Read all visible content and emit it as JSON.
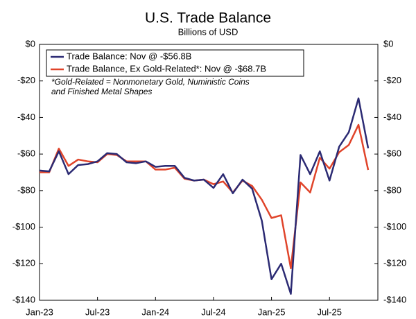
{
  "chart_data": {
    "type": "line",
    "title": "U.S. Trade Balance",
    "subtitle": "Billions of USD",
    "annotation": [
      "*Gold-Related = Nonmonetary Gold, Nuministic Coins",
      "and Finished Metal Shapes"
    ],
    "categories": [
      "Jan-23",
      null,
      null,
      null,
      null,
      null,
      "Jul-23",
      null,
      null,
      null,
      null,
      null,
      "Jan-24",
      null,
      null,
      null,
      null,
      null,
      "Jul-24",
      null,
      null,
      null,
      null,
      null,
      "Jan-25",
      null,
      null,
      null,
      null,
      null,
      "Jul-25",
      null,
      null,
      null,
      null
    ],
    "series": [
      {
        "name": "Trade Balance: Nov @ -$56.8B",
        "color": "#2b2a73",
        "values": [
          -69,
          -69.5,
          -58.5,
          -71,
          -66,
          -65.5,
          -64,
          -59.5,
          -60,
          -64.5,
          -65,
          -64,
          -67,
          -66.5,
          -66.5,
          -73,
          -74.5,
          -74,
          -78.5,
          -71,
          -81.5,
          -74,
          -79,
          -96.5,
          -128.5,
          -120,
          -136.5,
          -60.5,
          -71,
          -58.5,
          -74.5,
          -56,
          -48,
          -29.5,
          -56.8
        ]
      },
      {
        "name": "Trade Balance, Ex Gold-Related*: Nov @ -$68.7B",
        "color": "#e0442a",
        "values": [
          -70,
          -70,
          -57,
          -66.5,
          -63,
          -64,
          -64.5,
          -60,
          -60.5,
          -64,
          -64,
          -64,
          -68.5,
          -68.5,
          -67.5,
          -73.5,
          -74.5,
          -74,
          -76.5,
          -75,
          -81,
          -74.5,
          -77.5,
          -85,
          -95,
          -93.5,
          -122.5,
          -75.5,
          -81,
          -62,
          -68,
          -59,
          -55,
          -44,
          -68.7
        ]
      }
    ],
    "ylim": [
      -140,
      0
    ],
    "yticks": [
      {
        "value": 0,
        "label": "$0"
      },
      {
        "value": -20,
        "label": "-$20"
      },
      {
        "value": -40,
        "label": "-$40"
      },
      {
        "value": -60,
        "label": "-$60"
      },
      {
        "value": -80,
        "label": "-$80"
      },
      {
        "value": -100,
        "label": "-$100"
      },
      {
        "value": -120,
        "label": "-$120"
      },
      {
        "value": -140,
        "label": "-$140"
      }
    ],
    "y2lim": [
      -140,
      0
    ],
    "y2ticks": [
      {
        "value": 0,
        "label": "$0"
      },
      {
        "value": -20,
        "label": "-$20"
      },
      {
        "value": -40,
        "label": "-$40"
      },
      {
        "value": -60,
        "label": "-$60"
      },
      {
        "value": -80,
        "label": "-$80"
      },
      {
        "value": -100,
        "label": "-$100"
      },
      {
        "value": -120,
        "label": "-$120"
      },
      {
        "value": -140,
        "label": "-$140"
      }
    ],
    "legend": "upper left",
    "grid": false
  }
}
